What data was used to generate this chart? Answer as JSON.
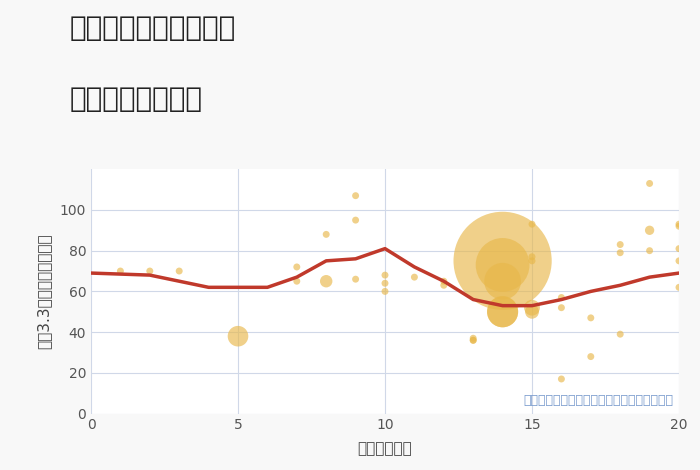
{
  "title_line1": "兵庫県尼崎市富松町の",
  "title_line2": "駅距離別土地価格",
  "xlabel": "駅距離（分）",
  "ylabel": "坪（3.3㎡）単価（万円）",
  "bg_color": "#f8f8f8",
  "plot_bg_color": "#ffffff",
  "line_color": "#c0392b",
  "scatter_color": "#e8b84b",
  "scatter_alpha": 0.65,
  "line_x": [
    0,
    2,
    4,
    5,
    6,
    7,
    8,
    9,
    10,
    11,
    12,
    13,
    14,
    15,
    16,
    17,
    18,
    19,
    20
  ],
  "line_y": [
    69,
    68,
    62,
    62,
    62,
    67,
    75,
    76,
    81,
    72,
    65,
    56,
    53,
    53,
    56,
    60,
    63,
    67,
    69
  ],
  "scatter_x": [
    1,
    2,
    3,
    5,
    7,
    7,
    8,
    8,
    9,
    9,
    9,
    10,
    10,
    10,
    11,
    12,
    12,
    13,
    13,
    13,
    14,
    14,
    14,
    14,
    14,
    15,
    15,
    15,
    15,
    15,
    16,
    16,
    16,
    17,
    17,
    18,
    18,
    18,
    19,
    19,
    19,
    20,
    20,
    20,
    20,
    20
  ],
  "scatter_y": [
    70,
    70,
    70,
    38,
    72,
    65,
    65,
    88,
    107,
    95,
    66,
    68,
    64,
    60,
    67,
    65,
    63,
    36,
    36,
    37,
    75,
    73,
    65,
    50,
    50,
    93,
    77,
    75,
    52,
    50,
    57,
    52,
    17,
    28,
    47,
    39,
    83,
    79,
    113,
    90,
    80,
    93,
    92,
    81,
    75,
    62
  ],
  "scatter_size": [
    25,
    25,
    25,
    220,
    25,
    25,
    80,
    25,
    25,
    25,
    25,
    25,
    25,
    25,
    25,
    25,
    25,
    25,
    25,
    25,
    5000,
    1500,
    700,
    500,
    500,
    25,
    25,
    25,
    130,
    100,
    25,
    25,
    25,
    25,
    25,
    25,
    25,
    25,
    25,
    45,
    25,
    25,
    25,
    25,
    25,
    25
  ],
  "xlim": [
    0,
    20
  ],
  "ylim": [
    0,
    120
  ],
  "xticks": [
    0,
    5,
    10,
    15,
    20
  ],
  "yticks": [
    0,
    20,
    40,
    60,
    80,
    100
  ],
  "annotation": "円の大きさは、取引のあった物件面積を示す",
  "grid_color": "#d0d8e8",
  "title_fontsize": 20,
  "axis_fontsize": 11,
  "tick_fontsize": 10,
  "annotation_color": "#7799cc",
  "annotation_fontsize": 9,
  "tick_color": "#555555",
  "label_color": "#444444"
}
